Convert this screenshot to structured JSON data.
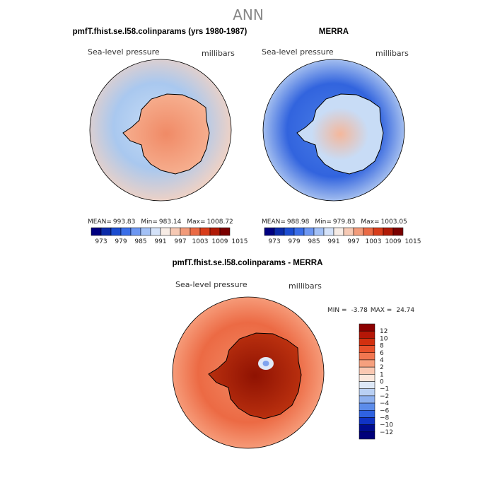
{
  "title": "ANN",
  "variable": "Sea-level pressure",
  "units": "millibars",
  "chart_data": [
    {
      "type": "heatmap",
      "title": "pmfT.fhist.se.l58.colinparams (yrs 1980-1987)",
      "projection": "south-polar",
      "mean_label": "MEAN=",
      "mean": "993.83",
      "min_label": "Min=",
      "min": "983.14",
      "max_label": "Max=",
      "max": "1008.72",
      "field": {
        "ocean_outer": "#f2d2c3",
        "ocean_inner": "#c7dcf5",
        "ocean_belt": "#a9c8ef",
        "land": "#f7b596",
        "land_core": "#f08a66"
      },
      "colorbar": {
        "ticks": [
          "973",
          "979",
          "985",
          "991",
          "997",
          "1003",
          "1009",
          "1015"
        ],
        "colors": [
          "#000080",
          "#0b2aa8",
          "#1b4cd0",
          "#3a6ee8",
          "#6d97f2",
          "#a3c1f6",
          "#d4e2f9",
          "#f7ece5",
          "#f6c9b4",
          "#f29b7a",
          "#ea6a45",
          "#d83c1a",
          "#b01a06",
          "#7a0000"
        ]
      }
    },
    {
      "type": "heatmap",
      "title": "MERRA",
      "projection": "south-polar",
      "mean_label": "MEAN=",
      "mean": "988.98",
      "min_label": "Min=",
      "min": "979.83",
      "max_label": "Max=",
      "max": "1003.05",
      "field": {
        "ocean_outer": "#c4d8f4",
        "ocean_inner": "#4a7ee6",
        "ocean_belt": "#3264de",
        "land": "#c8dcf6",
        "land_core": "#f4b79b"
      },
      "colorbar": {
        "ticks": [
          "973",
          "979",
          "985",
          "991",
          "997",
          "1003",
          "1009",
          "1015"
        ],
        "colors": [
          "#000080",
          "#0b2aa8",
          "#1b4cd0",
          "#3a6ee8",
          "#6d97f2",
          "#a3c1f6",
          "#d4e2f9",
          "#f7ece5",
          "#f6c9b4",
          "#f29b7a",
          "#ea6a45",
          "#d83c1a",
          "#b01a06",
          "#7a0000"
        ]
      }
    },
    {
      "type": "heatmap",
      "title": "pmfT.fhist.se.l58.colinparams - MERRA",
      "projection": "south-polar",
      "min_label": "MIN =",
      "min": "-3.78",
      "max_label": "MAX =",
      "max": "24.74",
      "field": {
        "ocean_outer": "#f9a988",
        "ocean_inner": "#f28b66",
        "ocean_belt": "#ec6a44",
        "land": "#c13511",
        "land_core": "#8f1202"
      },
      "colorbar": {
        "ticks": [
          "12",
          "10",
          "8",
          "6",
          "4",
          "2",
          "1",
          "0",
          "−1",
          "−2",
          "−4",
          "−6",
          "−8",
          "−10",
          "−12"
        ],
        "colors": [
          "#8c0000",
          "#b51707",
          "#d2300f",
          "#e8512b",
          "#f17650",
          "#f6a07e",
          "#fac8b2",
          "#fbe7dc",
          "#dde8f7",
          "#b9d0f4",
          "#8db0ef",
          "#5c8cea",
          "#2f62e0",
          "#1033c4",
          "#000c8e",
          "#00007a"
        ]
      }
    }
  ]
}
